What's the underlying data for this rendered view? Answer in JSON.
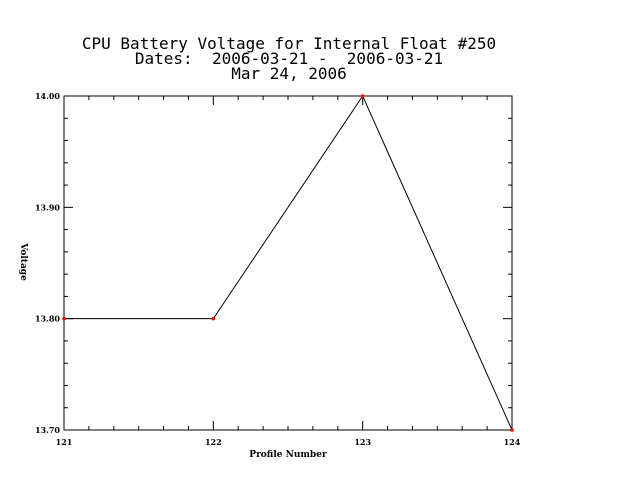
{
  "chart_data": {
    "type": "line",
    "title_lines": [
      "CPU Battery Voltage for Internal Float #250",
      "Dates:  2006-03-21 -  2006-03-21",
      "Mar 24, 2006"
    ],
    "xlabel": "Profile Number",
    "ylabel": "Voltage",
    "xlim": [
      121,
      124
    ],
    "ylim": [
      13.7,
      14.0
    ],
    "x_ticks": [
      121,
      122,
      123,
      124
    ],
    "x_tick_labels": [
      "121",
      "122",
      "123",
      "124"
    ],
    "y_ticks": [
      13.7,
      13.8,
      13.9,
      14.0
    ],
    "y_tick_labels": [
      "13.70",
      "13.80",
      "13.90",
      "14.00"
    ],
    "series": [
      {
        "x": [
          121,
          122,
          123,
          124
        ],
        "y": [
          13.8,
          13.8,
          14.0,
          13.7
        ],
        "line_color": "#000000",
        "marker_color": "#ff0000"
      }
    ],
    "grid": false
  }
}
